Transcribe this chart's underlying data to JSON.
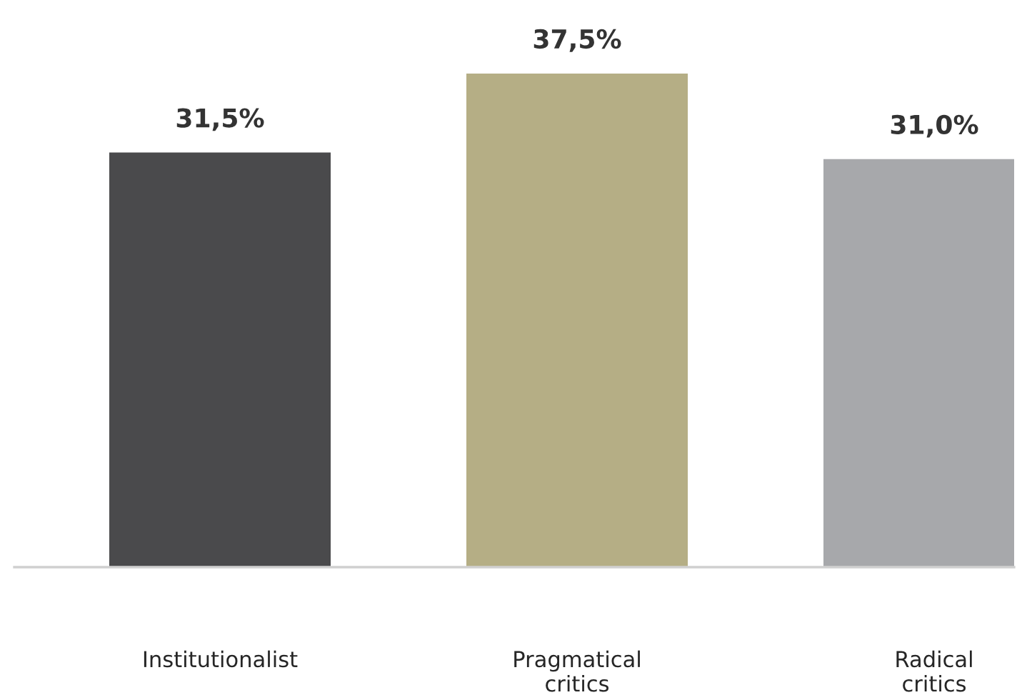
{
  "chart_data": {
    "type": "bar",
    "categories": [
      "Institutionalist",
      "Pragmatical\ncritics",
      "Radical\ncritics"
    ],
    "values": [
      31.5,
      37.5,
      31.0
    ],
    "colors": [
      "#4a4a4c",
      "#b5ae85",
      "#a7a8ab"
    ],
    "value_labels": [
      "31,5%",
      "37,5%",
      "31,0%"
    ],
    "tick_labels": "x",
    "grid": false,
    "legend": false
  }
}
